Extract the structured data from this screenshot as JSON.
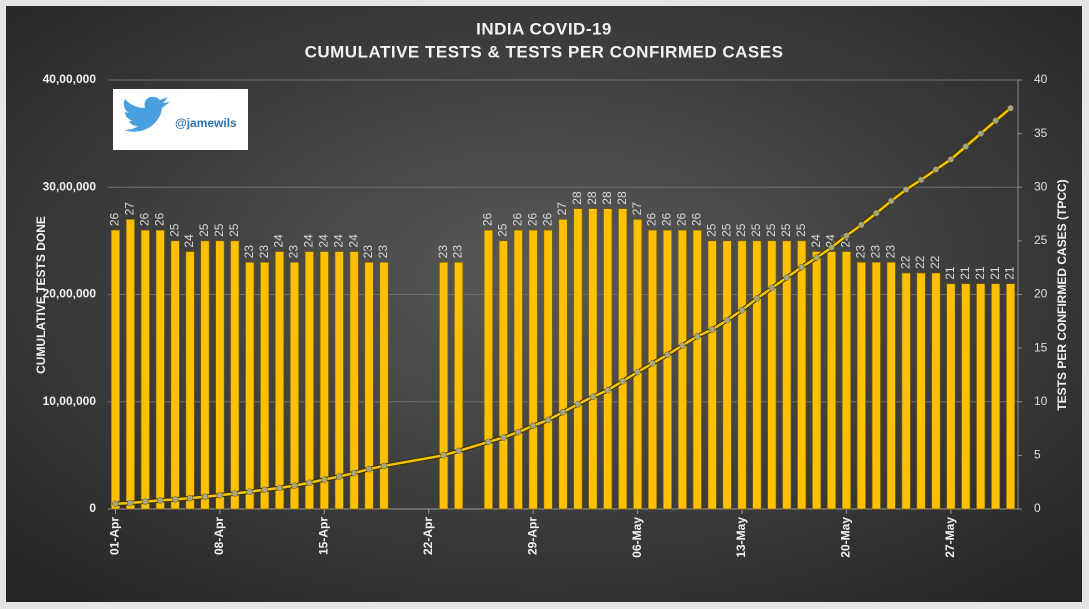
{
  "chart_data": {
    "type": "bar",
    "title": "INDIA COVID-19",
    "subtitle": "CUMULATIVE TESTS & TESTS PER CONFIRMED CASES",
    "y_label": "CUMULATIVE TESTS DONE",
    "y2_label": "TESTS PER CONFIRMED CASES (TPCC)",
    "annotation": "@jamewils",
    "categories": [
      "01-Apr",
      null,
      null,
      null,
      null,
      null,
      null,
      "08-Apr",
      null,
      null,
      null,
      null,
      null,
      null,
      "15-Apr",
      null,
      null,
      null,
      null,
      null,
      null,
      "22-Apr",
      null,
      null,
      null,
      null,
      null,
      null,
      "29-Apr",
      null,
      null,
      null,
      null,
      null,
      null,
      "06-May",
      null,
      null,
      null,
      null,
      null,
      null,
      "13-May",
      null,
      null,
      null,
      null,
      null,
      null,
      "20-May",
      null,
      null,
      null,
      null,
      null,
      null,
      "27-May",
      null,
      null,
      null,
      null
    ],
    "span_gaps": true,
    "series": [
      {
        "type": "bar",
        "axis": "y2",
        "color": "#ffc000",
        "values": [
          26,
          27,
          26,
          26,
          25,
          24,
          25,
          25,
          25,
          23,
          23,
          24,
          23,
          24,
          24,
          24,
          24,
          23,
          23,
          null,
          null,
          null,
          23,
          23,
          null,
          26,
          25,
          26,
          26,
          26,
          27,
          28,
          28,
          28,
          28,
          27,
          26,
          26,
          26,
          26,
          25,
          25,
          25,
          25,
          25,
          25,
          25,
          24,
          24,
          24,
          23,
          23,
          23,
          22,
          22,
          22,
          21,
          21,
          21,
          21,
          21
        ]
      },
      {
        "type": "line",
        "color": "#f5c400",
        "marker_color": "#a8a67a",
        "values": [
          47951,
          55851,
          69245,
          79950,
          89534,
          101068,
          114015,
          127919,
          144910,
          161330,
          179374,
          195748,
          217554,
          244893,
          274599,
          302956,
          335123,
          372123,
          401586,
          null,
          null,
          null,
          500542,
          541789,
          null,
          625309,
          665819,
          716733,
          775340,
          830201,
          902654,
          976363,
          1046450,
          1107233,
          1191946,
          1276781,
          1357413,
          1437788,
          1524235,
          1609979,
          1673688,
          1759579,
          1854250,
          1962447,
          2061357,
          2158144,
          2255582,
          2342931,
          2438076,
          2548222,
          2649307,
          2757747,
          2872014,
          2978180,
          3069000,
          3165000,
          3260000,
          3380000,
          3500000,
          3620000,
          3737027
        ]
      }
    ],
    "ylim": [
      0,
      4000000
    ],
    "yticks": [
      0,
      {
        "value": 1000000,
        "label": "10,00,000"
      },
      {
        "value": 2000000,
        "label": "20,00,000"
      },
      {
        "value": 3000000,
        "label": "30,00,000"
      },
      {
        "value": 4000000,
        "label": "40,00,000"
      }
    ],
    "y2lim": [
      0,
      40
    ],
    "y2ticks": [
      0,
      5,
      10,
      15,
      20,
      25,
      30,
      35,
      40
    ],
    "grid": true
  }
}
